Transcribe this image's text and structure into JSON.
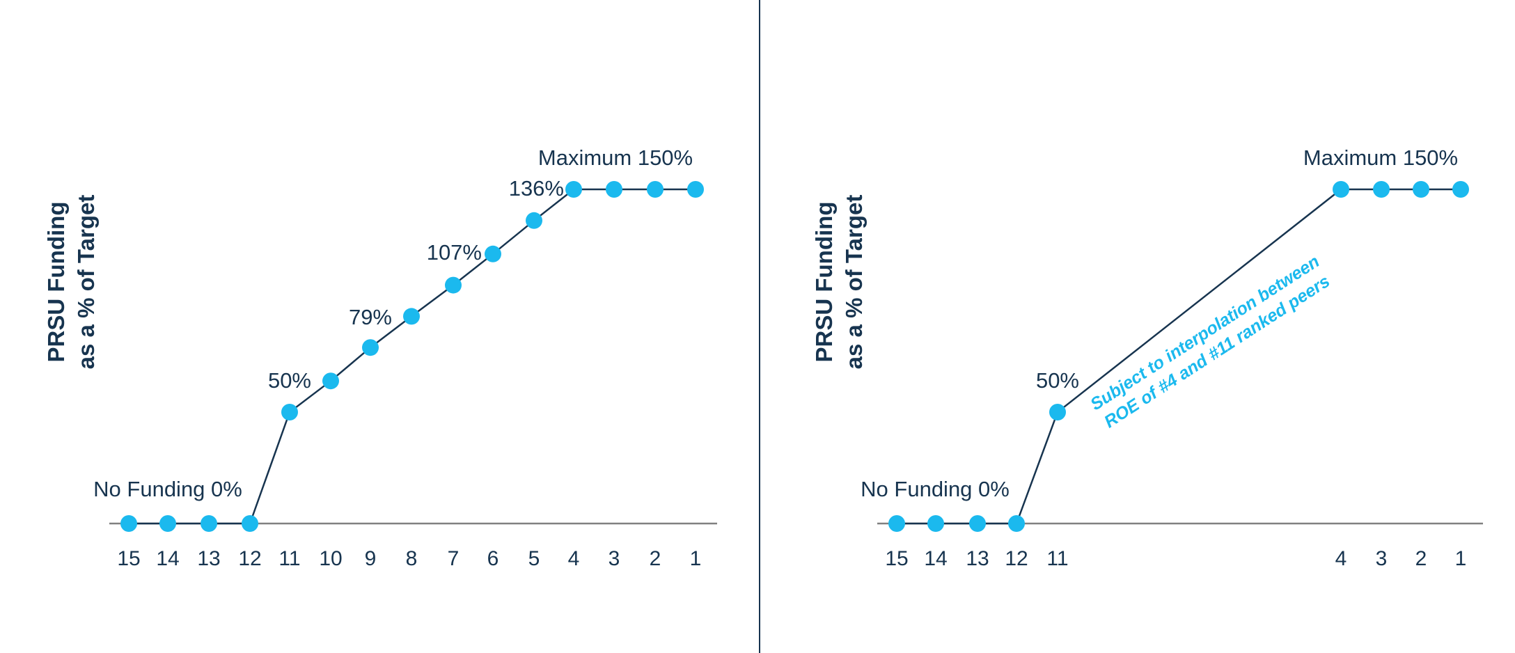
{
  "chart_data": [
    {
      "type": "line",
      "ylabel": [
        "PRSU Funding",
        "as a % of Target"
      ],
      "xlabel": "",
      "x": [
        15,
        14,
        13,
        12,
        11,
        10,
        9,
        8,
        7,
        6,
        5,
        4,
        3,
        2,
        1
      ],
      "tick_labels": [
        "15",
        "14",
        "13",
        "12",
        "11",
        "10",
        "9",
        "8",
        "7",
        "6",
        "5",
        "4",
        "3",
        "2",
        "1"
      ],
      "series": [
        {
          "values": [
            0,
            0,
            0,
            0,
            50,
            64,
            79,
            93,
            107,
            121,
            136,
            150,
            150,
            150,
            150
          ]
        }
      ],
      "ylim": [
        0,
        150
      ],
      "annotations": [
        {
          "text": "No Funding 0%",
          "rank": 14
        },
        {
          "text": "50%",
          "rank": 11
        },
        {
          "text": "79%",
          "rank": 9
        },
        {
          "text": "107%",
          "rank": 7
        },
        {
          "text": "136%",
          "rank": 5
        },
        {
          "text": "Maximum 150%",
          "rank": 3
        }
      ],
      "colors": {
        "marker": "#1bb9ee",
        "line": "#17344f",
        "axis": "#808080",
        "text": "#17344f"
      }
    },
    {
      "type": "line",
      "ylabel": [
        "PRSU Funding",
        "as a % of Target"
      ],
      "xlabel": "",
      "x": [
        15,
        14,
        13,
        12,
        11,
        4,
        3,
        2,
        1
      ],
      "tick_labels": [
        "15",
        "14",
        "13",
        "12",
        "11",
        "4",
        "3",
        "2",
        "1"
      ],
      "series": [
        {
          "values": [
            0,
            0,
            0,
            0,
            50,
            150,
            150,
            150,
            150
          ]
        }
      ],
      "ylim": [
        0,
        150
      ],
      "annotations": [
        {
          "text": "No Funding 0%",
          "rank": 14
        },
        {
          "text": "50%",
          "rank": 11
        },
        {
          "text": "Maximum 150%",
          "rank": 3
        },
        {
          "text": [
            "Subject to interpolation between",
            "ROE of #4 and #11 ranked peers"
          ]
        }
      ],
      "colors": {
        "marker": "#1bb9ee",
        "line": "#17344f",
        "axis": "#808080",
        "text": "#17344f",
        "note": "#1bb9ee"
      }
    }
  ]
}
